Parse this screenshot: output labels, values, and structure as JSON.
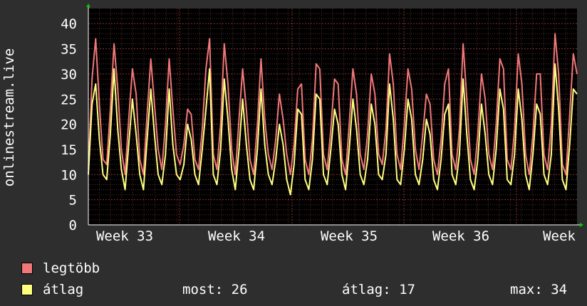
{
  "chart_data": {
    "type": "line",
    "ylabel": "onlinestream.live",
    "y_ticks": [
      0,
      5,
      10,
      15,
      20,
      25,
      30,
      35,
      40
    ],
    "ylim": [
      0,
      43
    ],
    "x_ticks": [
      "Week 33",
      "Week 34",
      "Week 35",
      "Week 36",
      "Week"
    ],
    "grid": true,
    "legend_placement": "bottom-left",
    "series": [
      {
        "name": "legtöbb",
        "color": "#f07878",
        "values": [
          11,
          29,
          37,
          24,
          13,
          12,
          23,
          36,
          27,
          15,
          10,
          21,
          31,
          26,
          13,
          10,
          22,
          33,
          24,
          15,
          11,
          20,
          33,
          23,
          14,
          12,
          16,
          23,
          22,
          13,
          11,
          19,
          31,
          37,
          14,
          11,
          20,
          36,
          28,
          15,
          10,
          21,
          31,
          23,
          13,
          10,
          20,
          33,
          21,
          14,
          11,
          17,
          26,
          21,
          14,
          10,
          16,
          27,
          28,
          13,
          10,
          17,
          32,
          31,
          14,
          11,
          19,
          29,
          28,
          13,
          10,
          20,
          31,
          26,
          14,
          11,
          18,
          30,
          26,
          14,
          12,
          19,
          34,
          28,
          14,
          11,
          20,
          31,
          27,
          15,
          11,
          18,
          26,
          24,
          13,
          10,
          17,
          28,
          31,
          14,
          11,
          19,
          36,
          25,
          13,
          10,
          18,
          30,
          25,
          14,
          11,
          20,
          33,
          31,
          13,
          11,
          19,
          34,
          28,
          14,
          10,
          18,
          30,
          30,
          14,
          11,
          20,
          38,
          30,
          12,
          10,
          22,
          34,
          30
        ]
      },
      {
        "name": "átlag",
        "color": "#ffff80",
        "values": [
          10,
          24,
          28,
          17,
          10,
          9,
          18,
          31,
          19,
          11,
          7,
          16,
          25,
          18,
          10,
          7,
          17,
          27,
          18,
          10,
          8,
          14,
          27,
          16,
          10,
          9,
          12,
          20,
          17,
          10,
          8,
          15,
          23,
          31,
          10,
          8,
          15,
          29,
          21,
          11,
          7,
          15,
          25,
          16,
          9,
          7,
          15,
          27,
          16,
          10,
          8,
          13,
          20,
          16,
          9,
          6,
          12,
          23,
          22,
          9,
          7,
          13,
          26,
          25,
          10,
          8,
          15,
          23,
          20,
          10,
          7,
          15,
          25,
          19,
          10,
          8,
          13,
          24,
          20,
          10,
          9,
          14,
          28,
          21,
          9,
          8,
          15,
          25,
          21,
          10,
          8,
          13,
          21,
          18,
          9,
          7,
          13,
          22,
          24,
          10,
          8,
          14,
          29,
          18,
          9,
          7,
          13,
          24,
          18,
          10,
          8,
          15,
          27,
          23,
          9,
          8,
          14,
          27,
          21,
          10,
          7,
          14,
          24,
          22,
          10,
          8,
          14,
          32,
          23,
          9,
          7,
          16,
          27,
          26
        ]
      }
    ],
    "stats": {
      "now_label": "most:",
      "now": 26,
      "avg_label": "átlag:",
      "avg": 17,
      "max_label": "max:",
      "max": 34
    }
  },
  "colors": {
    "background": "#2e2e2e",
    "plot_bg": "#000000",
    "grid_minor": "#5a2a2a",
    "grid_major": "#8a3030",
    "axis_arrow": "#00cc00"
  }
}
